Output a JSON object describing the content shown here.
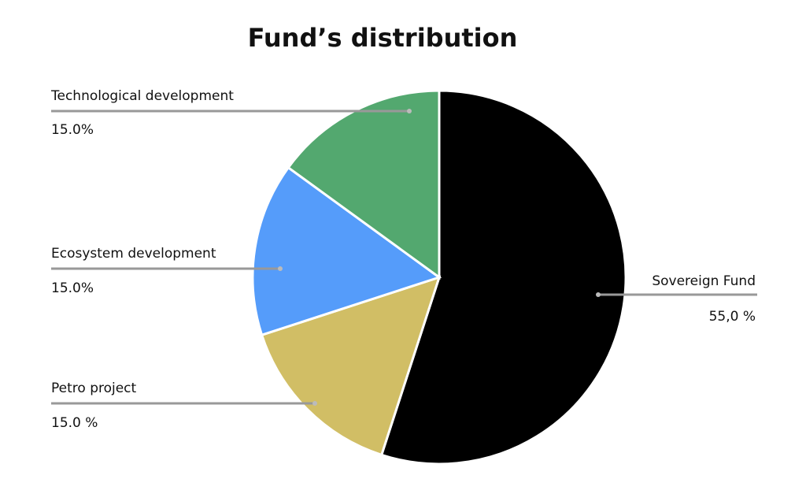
{
  "chart_data": {
    "type": "pie",
    "title": "Fund’s distribution",
    "categories": [
      "Sovereign Fund",
      "Petro project",
      "Ecosystem development",
      "Technological development"
    ],
    "values": [
      55,
      15,
      15,
      15
    ],
    "value_labels": [
      "55,0 %",
      "15.0 %",
      "15.0%",
      "15.0%"
    ],
    "colors": [
      "#000000",
      "#d1be65",
      "#559cfa",
      "#53a86f"
    ]
  }
}
